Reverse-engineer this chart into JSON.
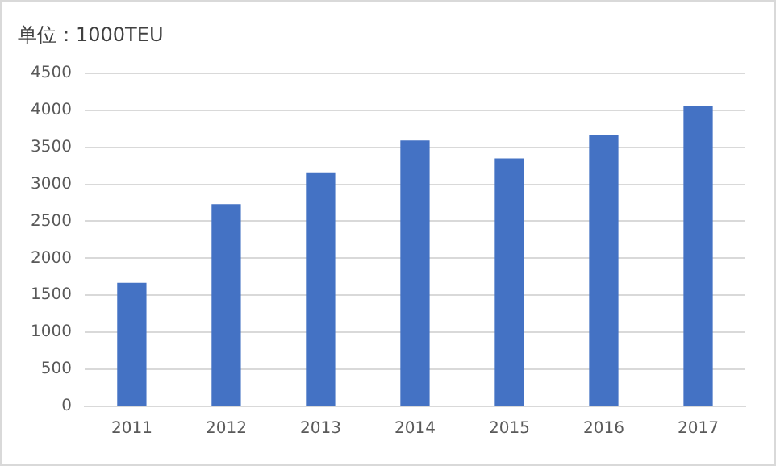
{
  "chart_data": {
    "type": "bar",
    "title": "单位：1000TEU",
    "categories": [
      "2011",
      "2012",
      "2013",
      "2014",
      "2015",
      "2016",
      "2017"
    ],
    "values": [
      1670,
      2730,
      3160,
      3590,
      3350,
      3670,
      4050
    ],
    "color": "#4472c4",
    "ylim": [
      0,
      4500
    ],
    "yticks": [
      0,
      500,
      1000,
      1500,
      2000,
      2500,
      3000,
      3500,
      4000,
      4500
    ],
    "grid": "y",
    "legend": false
  }
}
